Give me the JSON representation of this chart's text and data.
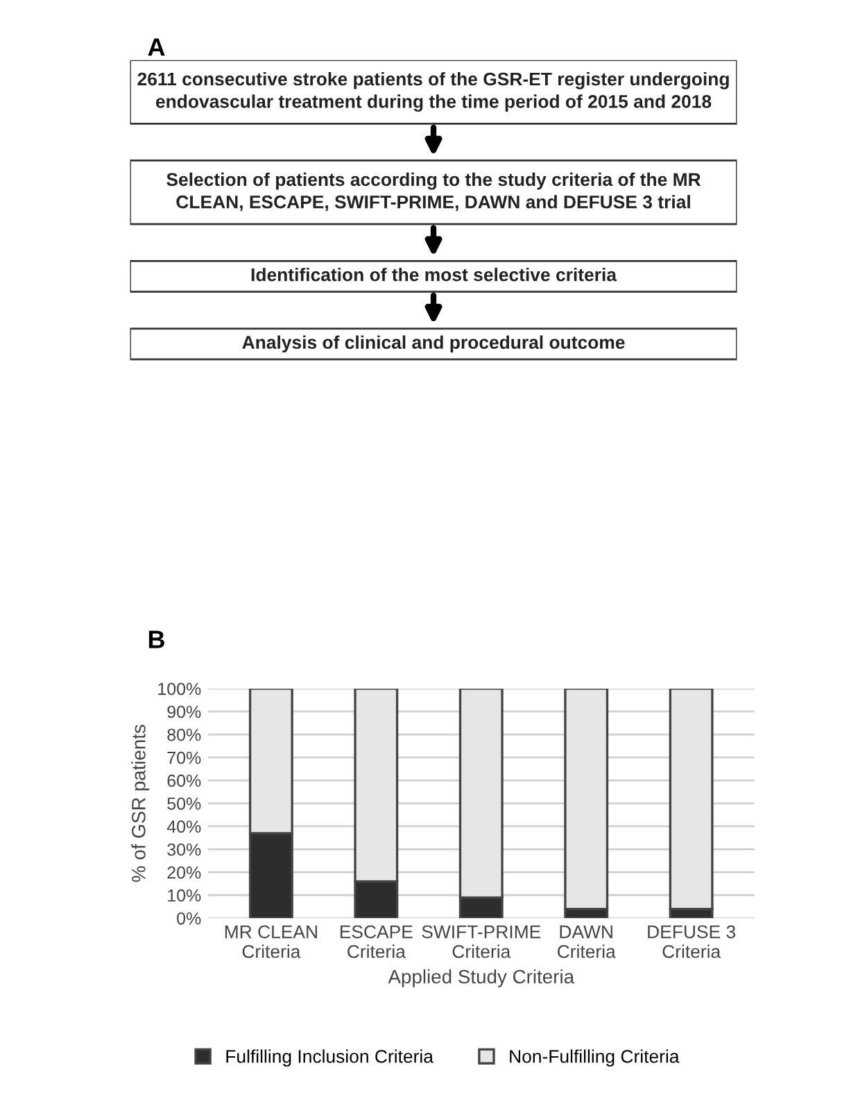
{
  "chart_data": [
    {
      "type": "other",
      "title": "A",
      "annotations": [
        "2611 consecutive stroke patients of the GSR-ET register undergoing\nendovascular treatment during the time period of 2015 and 2018",
        "Selection of patients according to the study criteria of the MR\nCLEAN, ESCAPE, SWIFT-PRIME, DAWN and DEFUSE 3 trial",
        "Identification of the most selective criteria",
        "Analysis of clinical and procedural outcome"
      ]
    },
    {
      "type": "bar",
      "title": "B",
      "stacked": true,
      "xlabel": "Applied Study Criteria",
      "ylabel": "% of GSR patients",
      "categories": [
        "MR CLEAN\nCriteria",
        "ESCAPE\nCriteria",
        "SWIFT-PRIME\nCriteria",
        "DAWN\nCriteria",
        "DEFUSE 3\nCriteria"
      ],
      "series": [
        {
          "name": "Fulfilling Inclusion Criteria",
          "color": "#2d2d2d",
          "values": [
            37,
            16,
            9,
            4,
            4
          ]
        },
        {
          "name": "Non-Fulfilling Criteria",
          "color": "#e6e6e6",
          "values": [
            63,
            84,
            91,
            96,
            96
          ]
        }
      ],
      "ylim": [
        0,
        100
      ],
      "yticks": [
        {
          "value": 0,
          "label": "0%"
        },
        {
          "value": 10,
          "label": "10%"
        },
        {
          "value": 20,
          "label": "20%"
        },
        {
          "value": 30,
          "label": "30%"
        },
        {
          "value": 40,
          "label": "40%"
        },
        {
          "value": 50,
          "label": "50%"
        },
        {
          "value": 60,
          "label": "60%"
        },
        {
          "value": 70,
          "label": "70%"
        },
        {
          "value": 80,
          "label": "80%"
        },
        {
          "value": 90,
          "label": "90%"
        },
        {
          "value": 100,
          "label": "100%"
        }
      ],
      "grid": "y",
      "legend": "bottom"
    }
  ]
}
